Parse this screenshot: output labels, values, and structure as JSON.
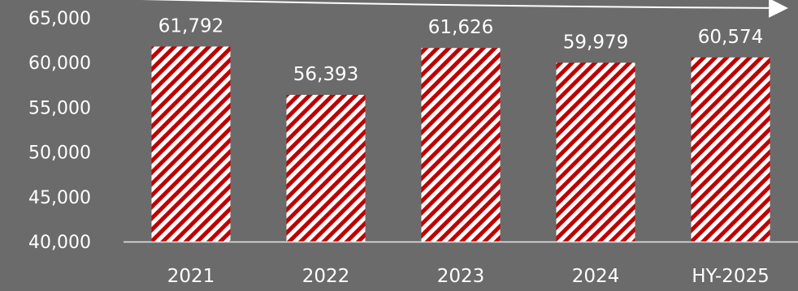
{
  "chart_data": {
    "type": "bar",
    "categories": [
      "2021",
      "2022",
      "2023",
      "2024",
      "HY-2025"
    ],
    "values": [
      61792,
      56393,
      61626,
      59979,
      60574
    ],
    "value_labels": [
      "61,792",
      "56,393",
      "61,626",
      "59,979",
      "60,574"
    ],
    "y_ticks": [
      "40,000",
      "45,000",
      "50,000",
      "55,000",
      "60,000",
      "65,000"
    ],
    "ylim": [
      40000,
      65000
    ],
    "grid": false,
    "legend": "none",
    "colors": {
      "background": "#6b6b6b",
      "bar_stripe": "#c00000",
      "bar_base": "#ffffff",
      "text": "#ffffff",
      "axis": "#e6e6e6"
    },
    "annotation": "trend-arrow"
  }
}
